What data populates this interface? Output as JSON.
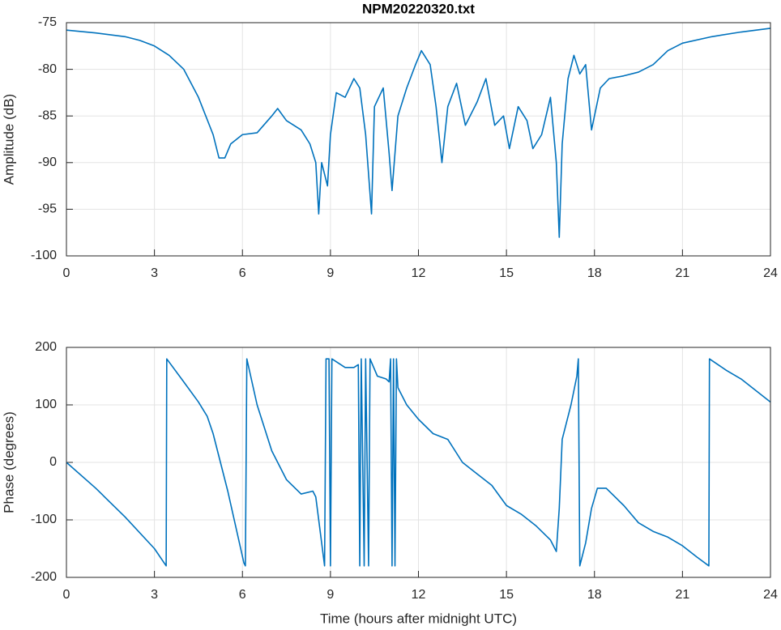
{
  "chart_data": [
    {
      "type": "line",
      "title": "NPM20220320.txt",
      "ylabel": "Amplitude (dB)",
      "color": "#0072bd",
      "grid": true,
      "xlim": [
        0,
        24
      ],
      "xticks": [
        0,
        3,
        6,
        9,
        12,
        15,
        18,
        21,
        24
      ],
      "ylim": [
        -100,
        -75
      ],
      "yticks": [
        -75,
        -80,
        -85,
        -90,
        -95,
        -100
      ],
      "x": [
        0,
        1,
        2,
        2.5,
        3,
        3.5,
        4,
        4.5,
        5,
        5.2,
        5.4,
        5.6,
        6,
        6.5,
        7,
        7.2,
        7.5,
        8,
        8.3,
        8.5,
        8.6,
        8.7,
        8.9,
        9.0,
        9.2,
        9.5,
        9.8,
        10.0,
        10.2,
        10.4,
        10.5,
        10.8,
        11.0,
        11.1,
        11.3,
        11.6,
        11.9,
        12.1,
        12.4,
        12.6,
        12.8,
        13.0,
        13.3,
        13.6,
        14.0,
        14.3,
        14.6,
        14.9,
        15.1,
        15.4,
        15.7,
        15.9,
        16.2,
        16.5,
        16.7,
        16.8,
        16.9,
        17.1,
        17.3,
        17.5,
        17.7,
        17.9,
        18.0,
        18.2,
        18.5,
        19,
        19.5,
        20,
        20.5,
        21,
        22,
        23,
        24
      ],
      "values": [
        -75.8,
        -76.1,
        -76.5,
        -76.9,
        -77.5,
        -78.5,
        -80,
        -83,
        -87,
        -89.5,
        -89.5,
        -88,
        -87,
        -86.8,
        -85,
        -84.2,
        -85.5,
        -86.5,
        -88,
        -90,
        -95.5,
        -90,
        -92.5,
        -87,
        -82.5,
        -83,
        -81,
        -82,
        -87,
        -95.5,
        -84,
        -82,
        -89,
        -93,
        -85,
        -82,
        -79.5,
        -78,
        -79.5,
        -84,
        -90,
        -84,
        -81.5,
        -86,
        -83.5,
        -81,
        -86,
        -85,
        -88.5,
        -84,
        -85.5,
        -88.5,
        -87,
        -83,
        -90,
        -98,
        -88,
        -81,
        -78.5,
        -80.5,
        -79.5,
        -86.5,
        -85,
        -82,
        -81,
        -80.7,
        -80.3,
        -79.5,
        -78,
        -77.2,
        -76.5,
        -76,
        -75.6
      ]
    },
    {
      "type": "line",
      "xlabel": "Time (hours after midnight UTC)",
      "ylabel": "Phase (degrees)",
      "color": "#0072bd",
      "grid": true,
      "xlim": [
        0,
        24
      ],
      "xticks": [
        0,
        3,
        6,
        9,
        12,
        15,
        18,
        21,
        24
      ],
      "ylim": [
        -200,
        200
      ],
      "yticks": [
        200,
        100,
        0,
        -100,
        -200
      ],
      "x": [
        0,
        1,
        2,
        3,
        3.4,
        3.42,
        4,
        4.5,
        4.8,
        5,
        5.5,
        6.05,
        6.1,
        6.15,
        6.5,
        7,
        7.5,
        8,
        8.4,
        8.5,
        8.7,
        8.8,
        8.85,
        8.95,
        9.0,
        9.05,
        9.5,
        9.8,
        9.95,
        10.0,
        10.05,
        10.15,
        10.2,
        10.3,
        10.35,
        10.6,
        10.9,
        11.0,
        11.05,
        11.1,
        11.15,
        11.2,
        11.25,
        11.3,
        11.6,
        12,
        12.5,
        13,
        13.5,
        14,
        14.5,
        15,
        15.5,
        16,
        16.5,
        16.7,
        16.8,
        16.9,
        17.2,
        17.4,
        17.45,
        17.5,
        17.7,
        17.9,
        18.1,
        18.4,
        19,
        19.5,
        20,
        20.5,
        21,
        21.5,
        21.9,
        21.92,
        22.5,
        23,
        24
      ],
      "values": [
        0,
        -45,
        -95,
        -150,
        -180,
        180,
        140,
        105,
        80,
        50,
        -50,
        -175,
        -180,
        180,
        100,
        20,
        -30,
        -55,
        -50,
        -60,
        -140,
        -180,
        180,
        180,
        -180,
        180,
        165,
        165,
        170,
        -180,
        180,
        -180,
        180,
        -180,
        180,
        150,
        145,
        140,
        180,
        -180,
        180,
        -180,
        180,
        130,
        100,
        75,
        50,
        40,
        0,
        -20,
        -40,
        -75,
        -90,
        -110,
        -135,
        -155,
        -80,
        40,
        100,
        150,
        180,
        -180,
        -140,
        -80,
        -45,
        -45,
        -75,
        -105,
        -120,
        -130,
        -145,
        -165,
        -180,
        180,
        160,
        145,
        105
      ]
    }
  ]
}
